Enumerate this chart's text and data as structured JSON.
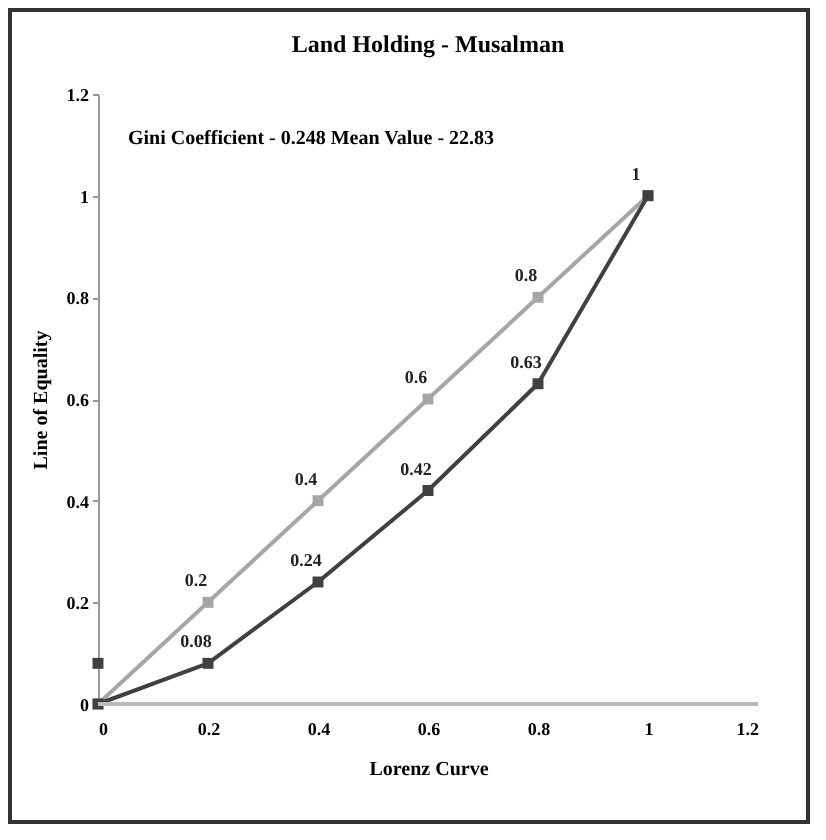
{
  "chart_data": {
    "type": "line",
    "title": "Land Holding - Musalman",
    "annotations": [
      "Gini Coefficient - 0.248  Mean Value - 22.83"
    ],
    "xlabel": "Lorenz Curve",
    "ylabel": "Line of Equality",
    "x": [
      0,
      0.2,
      0.4,
      0.6,
      0.8,
      1
    ],
    "xlim": [
      0,
      1.2
    ],
    "xticks": [
      0,
      0.2,
      0.4,
      0.6,
      0.8,
      1,
      1.2
    ],
    "ylim": [
      0,
      1.2
    ],
    "yticks": [
      0,
      0.2,
      0.4,
      0.6,
      0.8,
      1,
      1.2
    ],
    "grid": false,
    "marker": "square",
    "line_style": "solid",
    "series": [
      {
        "color": "#a6a6a6",
        "values": [
          0,
          0.2,
          0.4,
          0.6,
          0.8,
          1
        ],
        "value_labels": [
          null,
          "0.2",
          "0.4",
          "0.6",
          "0.8",
          "1"
        ]
      },
      {
        "color": "#404040",
        "values": [
          0,
          0.08,
          0.24,
          0.42,
          0.63,
          1
        ],
        "value_labels": [
          null,
          "0.08",
          "0.24",
          "0.42",
          "0.63",
          null
        ]
      },
      {
        "type": "scatter",
        "color": "#404040",
        "x": [
          0
        ],
        "values": [
          0.08
        ]
      }
    ]
  }
}
